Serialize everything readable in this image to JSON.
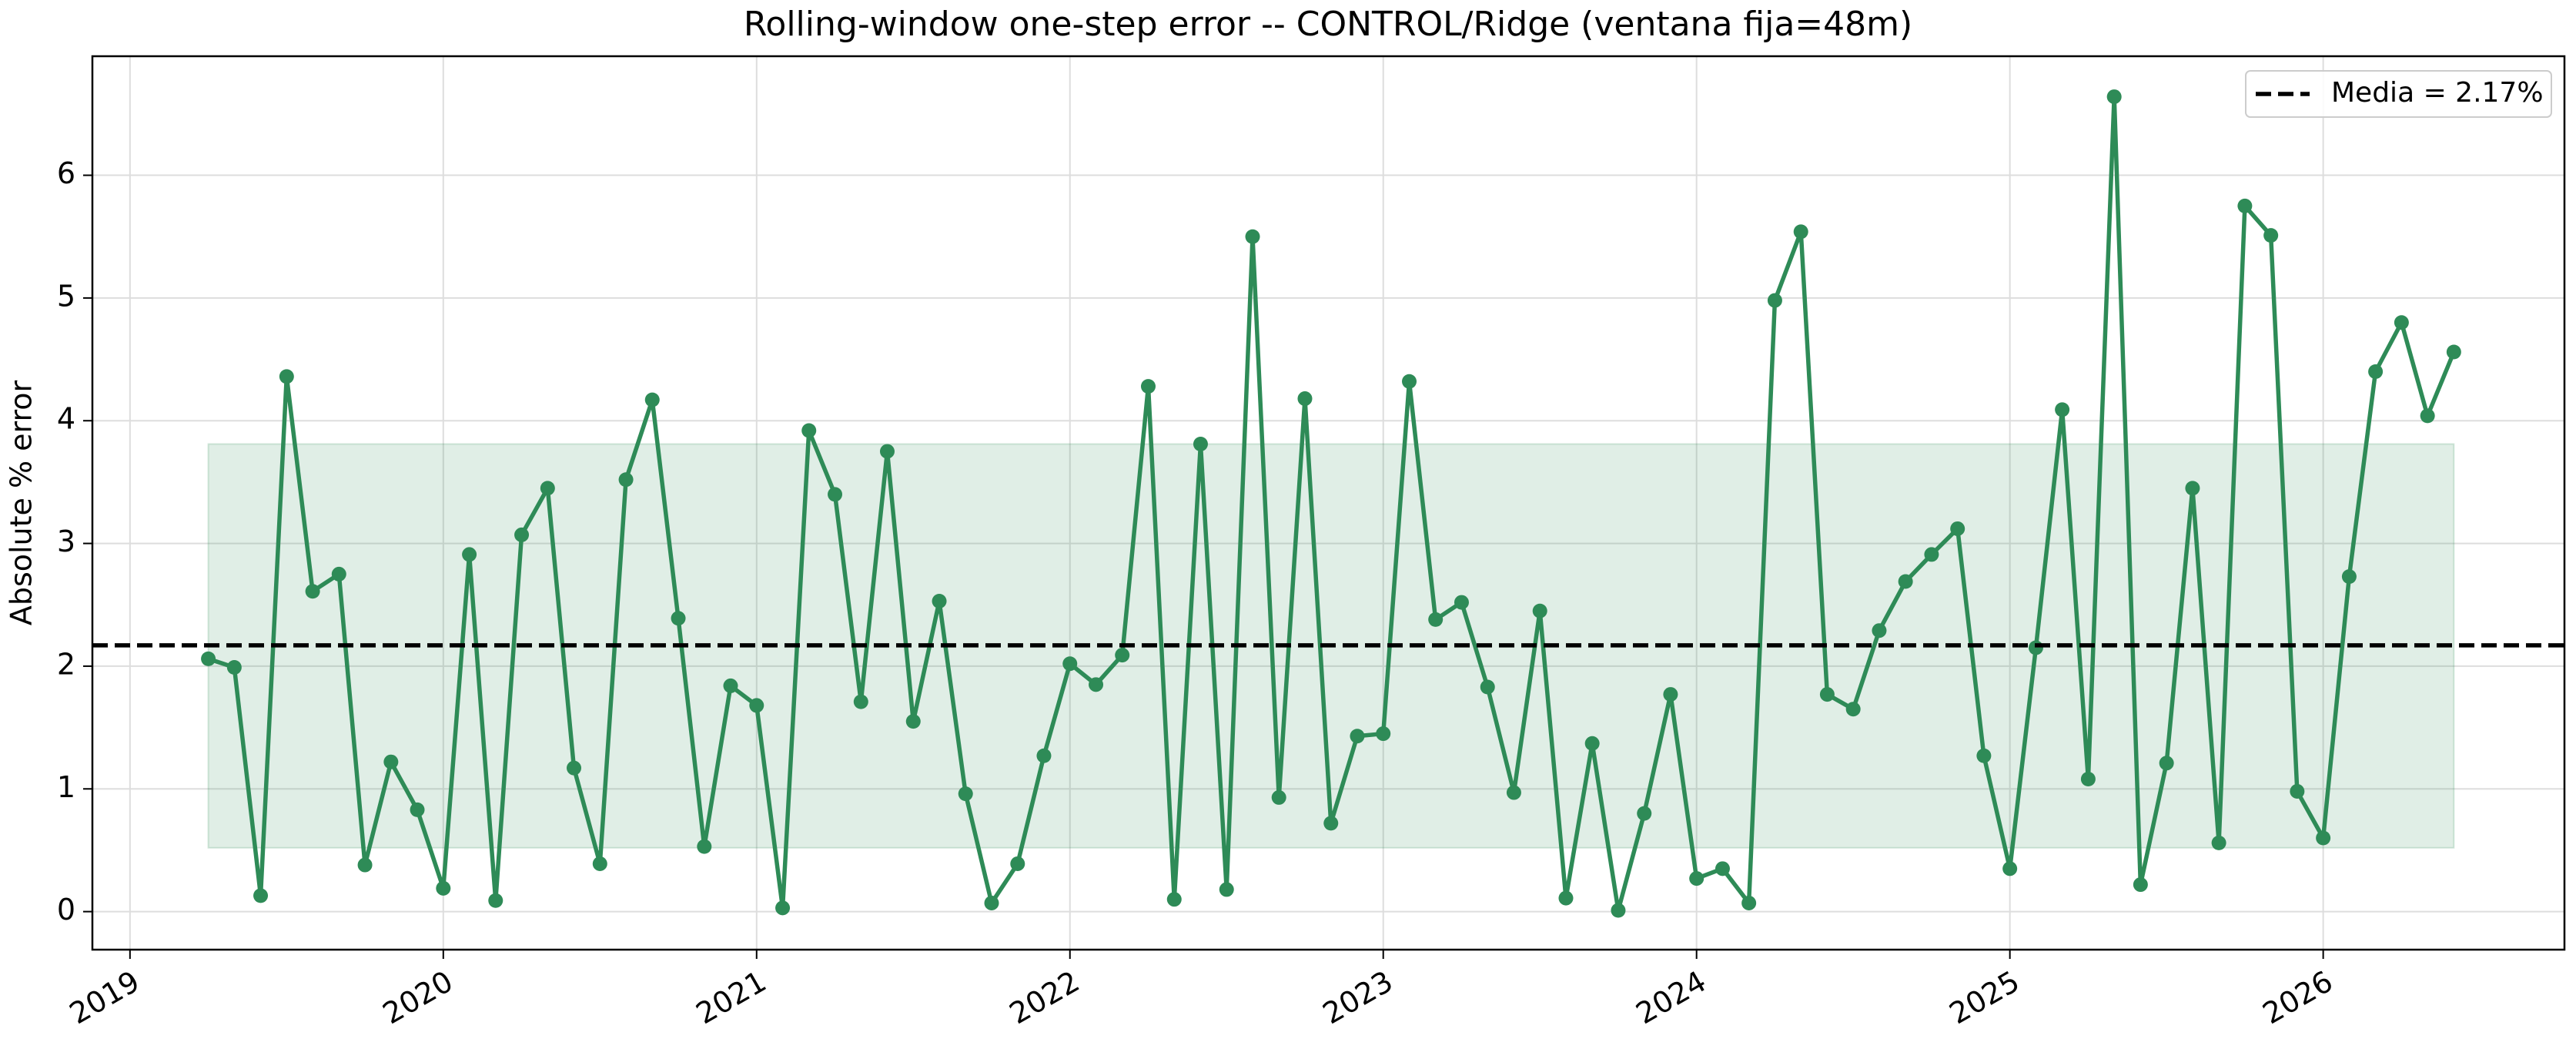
{
  "chart_data": {
    "type": "line",
    "title": "Rolling-window one-step error -- CONTROL/Ridge (ventana fija=48m)",
    "ylabel": "Absolute % error",
    "x": [
      2019.25,
      2019.333,
      2019.417,
      2019.5,
      2019.583,
      2019.667,
      2019.75,
      2019.833,
      2019.917,
      2020.0,
      2020.083,
      2020.167,
      2020.25,
      2020.333,
      2020.417,
      2020.5,
      2020.583,
      2020.667,
      2020.75,
      2020.833,
      2020.917,
      2021.0,
      2021.083,
      2021.167,
      2021.25,
      2021.333,
      2021.417,
      2021.5,
      2021.583,
      2021.667,
      2021.75,
      2021.833,
      2021.917,
      2022.0,
      2022.083,
      2022.167,
      2022.25,
      2022.333,
      2022.417,
      2022.5,
      2022.583,
      2022.667,
      2022.75,
      2022.833,
      2022.917,
      2023.0,
      2023.083,
      2023.167,
      2023.25,
      2023.333,
      2023.417,
      2023.5,
      2023.583,
      2023.667,
      2023.75,
      2023.833,
      2023.917,
      2024.0,
      2024.083,
      2024.167,
      2024.25,
      2024.333,
      2024.417,
      2024.5,
      2024.583,
      2024.667,
      2024.75,
      2024.833,
      2024.917,
      2025.0,
      2025.083,
      2025.167,
      2025.25,
      2025.333,
      2025.417,
      2025.5,
      2025.583,
      2025.667,
      2025.75,
      2025.833,
      2025.917,
      2026.0,
      2026.083,
      2026.167,
      2026.25,
      2026.333,
      2026.417
    ],
    "series": [
      {
        "color": "#2e8b57",
        "values": [
          2.06,
          1.99,
          0.13,
          4.36,
          2.61,
          2.75,
          0.38,
          1.22,
          0.83,
          0.19,
          2.91,
          0.09,
          3.07,
          3.45,
          1.17,
          0.39,
          3.52,
          4.17,
          2.39,
          0.53,
          1.84,
          1.68,
          0.03,
          3.92,
          3.4,
          1.71,
          3.75,
          1.55,
          2.53,
          0.96,
          0.07,
          0.39,
          1.27,
          2.02,
          1.85,
          2.09,
          4.28,
          0.1,
          3.81,
          0.18,
          5.5,
          0.93,
          4.18,
          0.72,
          1.43,
          1.45,
          4.32,
          2.38,
          2.52,
          1.83,
          0.97,
          2.45,
          0.11,
          1.37,
          0.01,
          0.8,
          1.77,
          0.27,
          0.35,
          0.07,
          4.98,
          5.54,
          1.77,
          1.65,
          2.29,
          2.69,
          2.91,
          3.12,
          1.27,
          0.35,
          2.15,
          4.09,
          1.08,
          6.64,
          0.22,
          1.21,
          3.45,
          0.56,
          5.75,
          5.51,
          0.98,
          0.6,
          2.73,
          4.4,
          4.8,
          4.04,
          4.56
        ]
      }
    ],
    "mean": 2.17,
    "mean_label": "Media = 2.17%",
    "mean_color": "#000000",
    "band_lower": 0.52,
    "band_upper": 3.81,
    "band_color": "#2e8b57",
    "xlim": [
      2018.88,
      2026.77
    ],
    "xticks": [
      2019,
      2020,
      2021,
      2022,
      2023,
      2024,
      2025,
      2026
    ],
    "ylim": [
      -0.31,
      6.97
    ],
    "yticks": [
      0,
      1,
      2,
      3,
      4,
      5,
      6
    ],
    "grid": true,
    "legend": "upper right"
  }
}
